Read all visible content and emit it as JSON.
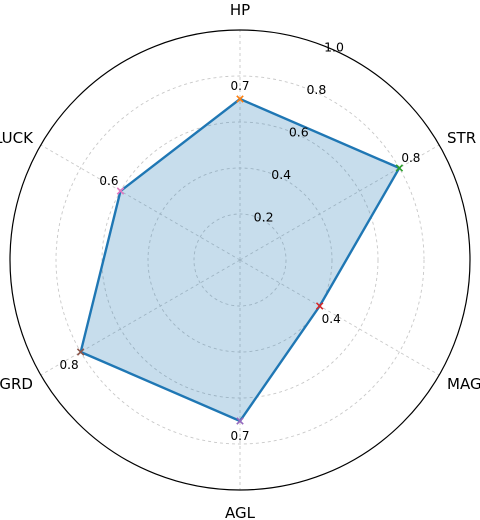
{
  "chart_data": {
    "type": "radar",
    "categories": [
      "HP",
      "STR",
      "MAG",
      "AGL",
      "GRD",
      "LUCK"
    ],
    "values": [
      0.7,
      0.8,
      0.4,
      0.7,
      0.8,
      0.6
    ],
    "value_labels": [
      "0.7",
      "0.8",
      "0.4",
      "0.7",
      "0.8",
      "0.6"
    ],
    "radial_ticks": [
      "0.2",
      "0.4",
      "0.6",
      "0.8",
      "1.0"
    ],
    "rlim": [
      0,
      1.0
    ],
    "grid": true,
    "colors": {
      "series": "#1f77b4",
      "markers": [
        "#ff7f0e",
        "#2ca02c",
        "#d62728",
        "#9467bd",
        "#8c564b",
        "#e377c2"
      ]
    }
  }
}
